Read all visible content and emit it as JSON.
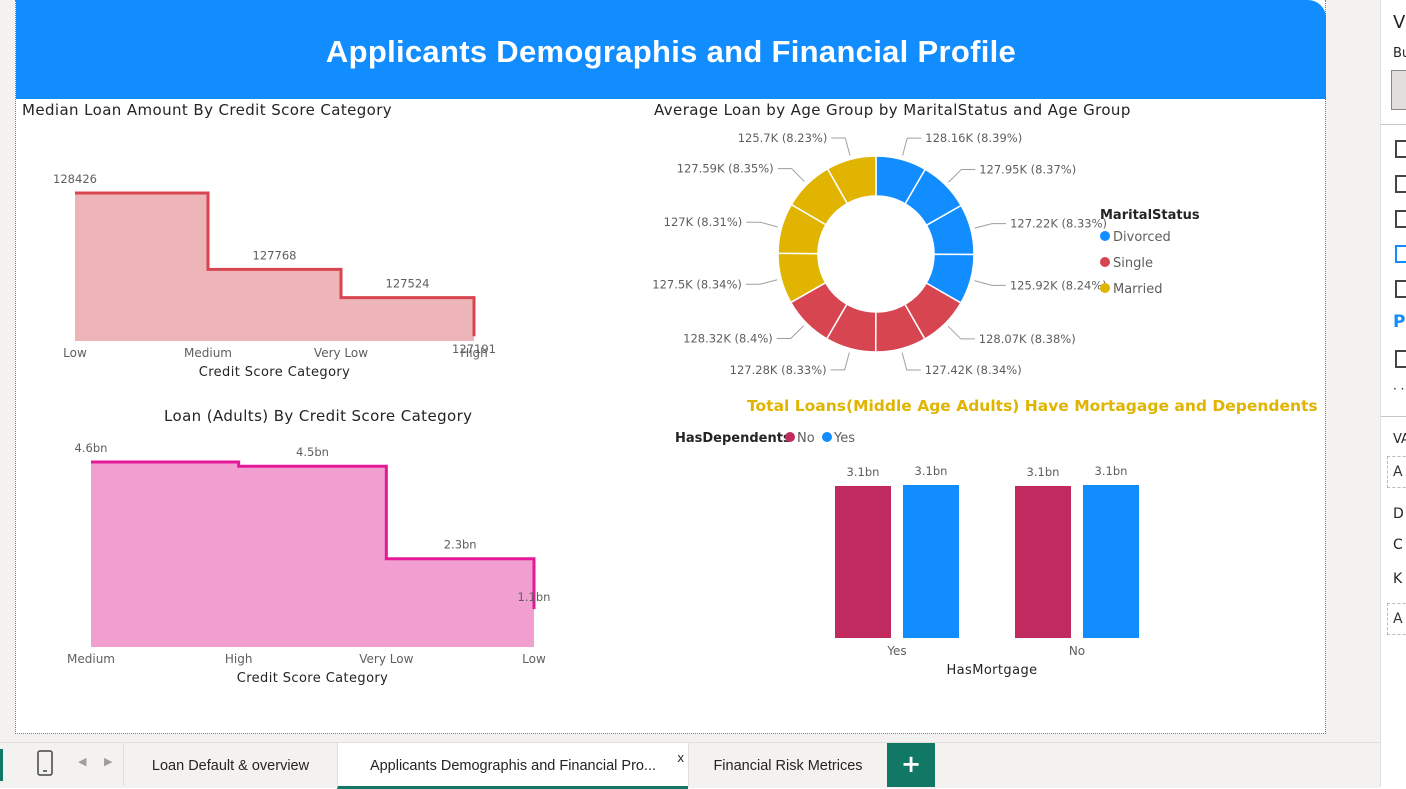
{
  "report": {
    "title": "Applicants Demographis and Financial Profile"
  },
  "colors": {
    "banner": "#118DFF",
    "blue": "#118DFF",
    "red": "#D64550",
    "gold": "#E0B400",
    "crimson": "#C02A5F",
    "pink_fill": "#F09FD0",
    "pink_line": "#E5189A",
    "salmon_fill": "#EDB5B8",
    "salmon_line": "#D64550",
    "accent_green": "#117865",
    "highlight_title": "#E0B400"
  },
  "chart_data": [
    {
      "id": "median_loan",
      "type": "area",
      "title": "Median Loan Amount By Credit Score Category",
      "xlabel": "Credit Score Category",
      "categories": [
        "Low",
        "Medium",
        "Very Low",
        "High"
      ],
      "values": [
        128426,
        127768,
        127524,
        127191
      ],
      "value_labels": [
        "128426",
        "127768",
        "127524",
        "127191"
      ]
    },
    {
      "id": "avg_loan_donut",
      "type": "pie",
      "title": "Average Loan by Age Group by MaritalStatus and Age Group",
      "legend_title": "MaritalStatus",
      "legend": [
        "Divorced",
        "Single",
        "Married"
      ],
      "slices": [
        {
          "series": "Divorced",
          "label": "128.16K (8.39%)",
          "value": 128.16
        },
        {
          "series": "Divorced",
          "label": "127.95K (8.37%)",
          "value": 127.95
        },
        {
          "series": "Divorced",
          "label": "127.22K (8.33%)",
          "value": 127.22
        },
        {
          "series": "Divorced",
          "label": "125.92K (8.24%)",
          "value": 125.92
        },
        {
          "series": "Single",
          "label": "128.07K (8.38%)",
          "value": 128.07
        },
        {
          "series": "Single",
          "label": "127.42K (8.34%)",
          "value": 127.42
        },
        {
          "series": "Single",
          "label": "127.28K (8.33%)",
          "value": 127.28
        },
        {
          "series": "Single",
          "label": "128.32K (8.4%)",
          "value": 128.32
        },
        {
          "series": "Married",
          "label": "127.5K (8.34%)",
          "value": 127.5
        },
        {
          "series": "Married",
          "label": "127K (8.31%)",
          "value": 127.0
        },
        {
          "series": "Married",
          "label": "127.59K (8.35%)",
          "value": 127.59
        },
        {
          "series": "Married",
          "label": "125.7K (8.23%)",
          "value": 125.7
        }
      ]
    },
    {
      "id": "loan_adults",
      "type": "area",
      "title": "Loan (Adults) By Credit Score Category",
      "xlabel": "Credit Score Category",
      "categories": [
        "Medium",
        "High",
        "Very Low",
        "Low"
      ],
      "values": [
        4.6,
        4.5,
        2.3,
        1.1
      ],
      "value_labels": [
        "4.6bn",
        "4.5bn",
        "2.3bn",
        "1.1bn"
      ],
      "unit": "bn"
    },
    {
      "id": "total_loans_middle_age",
      "type": "bar",
      "title": "Total Loans(Middle Age Adults) Have Mortagage and Dependents",
      "legend_title": "HasDependents",
      "legend": [
        "No",
        "Yes"
      ],
      "xlabel": "HasMortgage",
      "categories": [
        "Yes",
        "No"
      ],
      "series": [
        {
          "name": "No",
          "values": [
            3.1,
            3.1
          ]
        },
        {
          "name": "Yes",
          "values": [
            3.1,
            3.1
          ]
        }
      ],
      "value_labels": [
        "3.1bn",
        "3.1bn",
        "3.1bn",
        "3.1bn"
      ],
      "unit": "bn"
    }
  ],
  "tabs": [
    {
      "label": "Loan Default & overview"
    },
    {
      "label": "Applicants Demographis and Financial Pro..."
    },
    {
      "label": "Financial Risk Metrices"
    }
  ],
  "tab_close": "x",
  "add_page": "+",
  "side_pane": {
    "title": "Vi",
    "build": "Bu",
    "p_label": "P",
    "more": "· ·",
    "va": "VA",
    "a1": "A",
    "d": "D",
    "c": "C",
    "k": "K",
    "a2": "A"
  }
}
